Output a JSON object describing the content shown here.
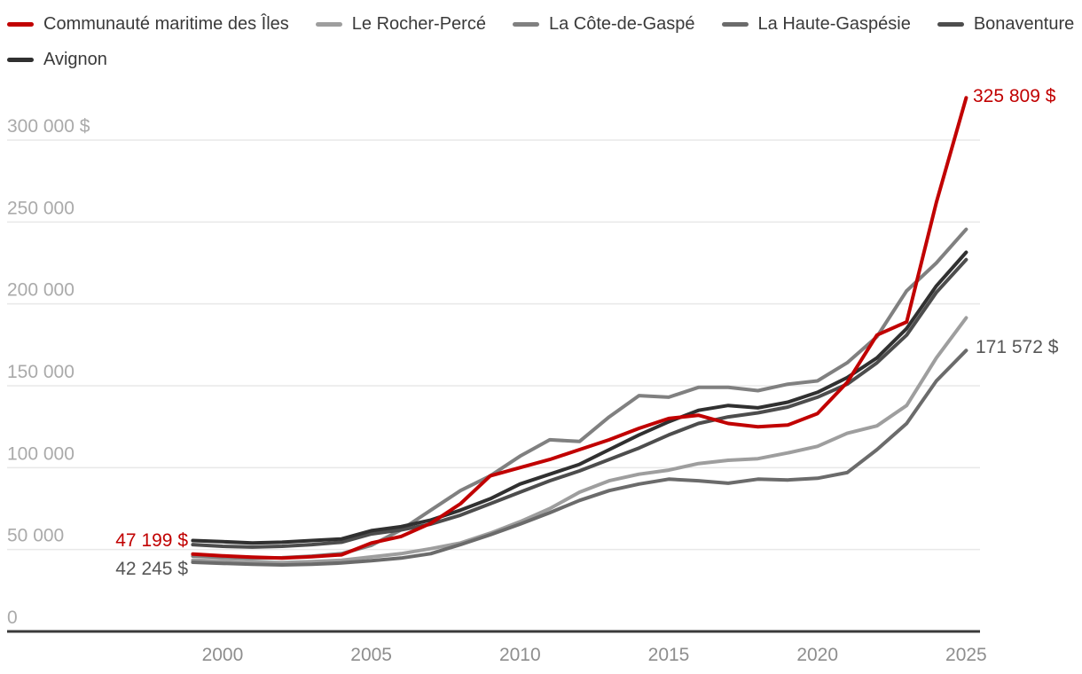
{
  "colors": {
    "background": "#ffffff",
    "primary_red": "#c10000",
    "annotation_gray": "#565656",
    "gridline": "#e8e8e8",
    "axis_line": "#3a3a3a",
    "ytick_text": "#aaaaaa",
    "xtick_text": "#8e8e8e",
    "legend_text": "#3a3a3a"
  },
  "legend": {
    "items": [
      {
        "label": "Communauté maritime des Îles",
        "color": "#c10000"
      },
      {
        "label": "Le Rocher-Percé",
        "color": "#9e9e9e"
      },
      {
        "label": "La Côte-de-Gaspé",
        "color": "#808080"
      },
      {
        "label": "La Haute-Gaspésie",
        "color": "#6b6b6b"
      },
      {
        "label": "Bonaventure",
        "color": "#4d4d4d"
      },
      {
        "label": "Avignon",
        "color": "#303030"
      }
    ]
  },
  "annotations": {
    "end_primary": {
      "text": "325 809 $",
      "color": "#c10000",
      "series": "Communauté maritime des Îles",
      "year": 2025
    },
    "end_secondary": {
      "text": "171 572 $",
      "color": "#565656",
      "series": "La Haute-Gaspésie",
      "year": 2025
    },
    "start_primary": {
      "text": "47 199 $",
      "color": "#c10000",
      "series": "Communauté maritime des Îles",
      "year": 1999
    },
    "start_secondary": {
      "text": "42 245 $",
      "color": "#565656",
      "series": "La Haute-Gaspésie",
      "year": 1999
    }
  },
  "chart_data": {
    "type": "line",
    "x": [
      1999,
      2000,
      2001,
      2002,
      2003,
      2004,
      2005,
      2006,
      2007,
      2008,
      2009,
      2010,
      2011,
      2012,
      2013,
      2014,
      2015,
      2016,
      2017,
      2018,
      2019,
      2020,
      2021,
      2022,
      2023,
      2024,
      2025
    ],
    "series": [
      {
        "name": "Le Rocher-Percé",
        "slug": "le-rocher-perce",
        "color": "#9e9e9e",
        "values": [
          43500,
          43000,
          42400,
          42000,
          42600,
          43500,
          45500,
          47500,
          50500,
          54000,
          60000,
          67000,
          75000,
          85000,
          92000,
          96000,
          98500,
          102500,
          104500,
          105500,
          109000,
          113000,
          121000,
          125500,
          138000,
          167000,
          191500
        ]
      },
      {
        "name": "La Côte-de-Gaspé",
        "slug": "la-cote-de-gaspe",
        "color": "#808080",
        "values": [
          46000,
          45200,
          44600,
          45000,
          46000,
          47500,
          52500,
          62000,
          74000,
          86000,
          95000,
          107000,
          117000,
          116000,
          131000,
          144000,
          143000,
          149000,
          149000,
          147000,
          151000,
          153000,
          164000,
          180000,
          208000,
          225000,
          245500
        ]
      },
      {
        "name": "La Haute-Gaspésie",
        "slug": "la-haute-gaspesie",
        "color": "#6b6b6b",
        "values": [
          42245,
          41600,
          41000,
          40600,
          41000,
          41800,
          43200,
          44800,
          47500,
          53000,
          59000,
          65500,
          72500,
          80000,
          86000,
          90000,
          93000,
          92000,
          90500,
          93000,
          92500,
          93500,
          97000,
          111000,
          127000,
          153000,
          171572
        ]
      },
      {
        "name": "Bonaventure",
        "slug": "bonaventure",
        "color": "#4d4d4d",
        "values": [
          53000,
          52000,
          51500,
          52000,
          53000,
          54500,
          59500,
          62000,
          65500,
          71000,
          78000,
          85000,
          92000,
          98000,
          105000,
          112000,
          120000,
          127000,
          131000,
          133500,
          137000,
          143000,
          151000,
          164000,
          181000,
          207000,
          227000
        ]
      },
      {
        "name": "Avignon",
        "slug": "avignon",
        "color": "#303030",
        "values": [
          55500,
          54800,
          54000,
          54500,
          55500,
          56500,
          61500,
          64000,
          68000,
          74000,
          81000,
          90000,
          96000,
          102000,
          111000,
          120000,
          128000,
          135000,
          138000,
          136500,
          140000,
          146000,
          155000,
          167000,
          185000,
          211000,
          231500
        ]
      },
      {
        "name": "Communauté maritime des Îles",
        "slug": "communaute-maritime-des-iles",
        "color": "#c10000",
        "values": [
          47199,
          46200,
          45300,
          44800,
          45600,
          46800,
          54000,
          58000,
          66000,
          78000,
          95000,
          100000,
          105000,
          111000,
          117000,
          124000,
          130000,
          132000,
          127000,
          125000,
          126000,
          133000,
          152000,
          181000,
          189000,
          262000,
          325809
        ]
      }
    ],
    "ylim": [
      0,
      325809
    ],
    "yticks": [
      {
        "value": 300000,
        "label": "300 000 $"
      },
      {
        "value": 250000,
        "label": "250 000"
      },
      {
        "value": 200000,
        "label": "200 000"
      },
      {
        "value": 150000,
        "label": "150 000"
      },
      {
        "value": 100000,
        "label": "100 000"
      },
      {
        "value": 50000,
        "label": "50 000"
      },
      {
        "value": 0,
        "label": "0"
      }
    ],
    "xticks": [
      {
        "value": 2000,
        "label": "2000"
      },
      {
        "value": 2005,
        "label": "2005"
      },
      {
        "value": 2010,
        "label": "2010"
      },
      {
        "value": 2015,
        "label": "2015"
      },
      {
        "value": 2020,
        "label": "2020"
      },
      {
        "value": 2025,
        "label": "2025"
      }
    ],
    "grid": true,
    "legend_position": "top"
  }
}
